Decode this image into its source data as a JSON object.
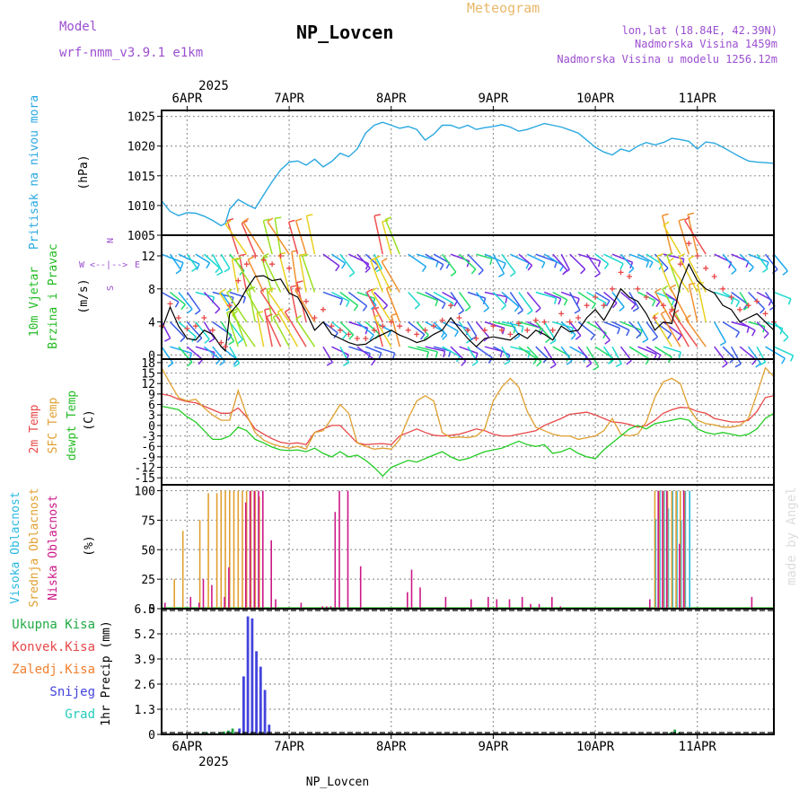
{
  "header": {
    "model_label": "Model",
    "model_name": "wrf-nmm_v3.9.1 e1km",
    "station": "NP_Lovcen",
    "product": "Meteogram",
    "lonlat": "lon,lat (18.84E, 42.39N)",
    "altitude": "Nadmorska Visina 1459m",
    "model_altitude": "Nadmorska Visina u modelu 1256.12m",
    "footer_station": "NP_Lovcen",
    "credit": "made by Angel"
  },
  "time_axis": {
    "year": "2025",
    "days": [
      "6APR",
      "7APR",
      "8APR",
      "9APR",
      "10APR",
      "11APR"
    ],
    "hours_shown": [
      -6,
      138
    ]
  },
  "colors": {
    "pressure": "#29a8e0",
    "temp2m": "#e84848",
    "sfc": "#e0a030",
    "dewpt": "#22cc22",
    "high_cloud": "#29b8e0",
    "mid_cloud": "#e0a030",
    "low_cloud": "#cc1888",
    "total_rain": "#22aa44",
    "conv_rain": "#e84848",
    "frozen": "#f08030",
    "snow": "#4444dd",
    "graupel": "#22ccbb",
    "gust": "#e84848"
  },
  "panels": {
    "pressure": {
      "ylabel_title": "Pritisak na nivou mora",
      "unit": "(hPa)",
      "ticks": [
        "1005",
        "1010",
        "1015",
        "1020",
        "1025"
      ]
    },
    "wind": {
      "ylabel_title": "10m Vjetar",
      "ylabel_title2": "Brzina i Pravac",
      "unit": "(m/s)",
      "ticks": [
        "0",
        "4",
        "8",
        "12"
      ],
      "compass_n": "N",
      "compass_s": "S",
      "compass_w": "W",
      "compass_e": "E"
    },
    "temp": {
      "label_2m": "2m Temp",
      "label_sfc": "SFC Temp",
      "label_dewpt": "dewpt Temp",
      "unit": "(C)",
      "ticks": [
        "-15",
        "-12",
        "-9",
        "-6",
        "-3",
        "0",
        "3",
        "6",
        "9",
        "12",
        "15",
        "18"
      ]
    },
    "cloud": {
      "label_high": "Visoka Oblacnost",
      "label_mid": "Srednja Oblacnost",
      "label_low": "Niska Oblacnost",
      "unit": "(%)",
      "ticks": [
        "0",
        "25",
        "50",
        "75",
        "100"
      ]
    },
    "precip": {
      "legend": [
        "Ukupna Kisa",
        "Konvek.Kisa",
        "Zaledj.Kisa",
        "Snijeg",
        "Grad"
      ],
      "ylabel": "1hr Precip (mm)",
      "ticks": [
        "0",
        "1.3",
        "2.6",
        "3.9",
        "5.2",
        "6.5"
      ]
    }
  },
  "chart_data": [
    {
      "type": "line",
      "title": "",
      "ylabel": "Pritisak na nivou mora (hPa)",
      "ylim": [
        1005,
        1026
      ],
      "x_unit": "hours from 6APR 00UTC",
      "series": [
        {
          "name": "Pritisak na nivou mora",
          "x": [
            -6,
            -4,
            -2,
            0,
            2,
            4,
            6,
            8,
            9,
            10,
            12,
            14,
            16,
            18,
            20,
            22,
            24,
            26,
            28,
            30,
            32,
            34,
            36,
            38,
            40,
            42,
            44,
            46,
            48,
            50,
            52,
            54,
            56,
            58,
            60,
            62,
            64,
            66,
            68,
            70,
            72,
            74,
            76,
            78,
            80,
            82,
            84,
            86,
            88,
            90,
            92,
            94,
            96,
            98,
            100,
            102,
            104,
            106,
            108,
            110,
            112,
            114,
            116,
            118,
            120,
            122,
            124,
            126,
            128,
            130,
            132,
            134,
            136,
            138
          ],
          "y": [
            1010.8,
            1009,
            1008.3,
            1008.8,
            1008.7,
            1008.2,
            1007.5,
            1006.6,
            1007,
            1009.4,
            1011,
            1010.2,
            1009.5,
            1011.8,
            1014,
            1016,
            1017.3,
            1017.5,
            1016.8,
            1017.8,
            1016.5,
            1017.4,
            1018.8,
            1018.2,
            1019.5,
            1022.2,
            1023.5,
            1024,
            1023.5,
            1023,
            1023.3,
            1022.8,
            1021,
            1022,
            1023.5,
            1023.5,
            1023,
            1023.5,
            1022.8,
            1023.1,
            1023.3,
            1023.6,
            1023.2,
            1022.5,
            1022.8,
            1023.3,
            1023.8,
            1023.5,
            1023.2,
            1022.7,
            1022.2,
            1021,
            1019.8,
            1019,
            1018.5,
            1019.5,
            1019.1,
            1020,
            1020.6,
            1020.2,
            1020.6,
            1021.3,
            1021.1,
            1020.8,
            1019.5,
            1020.7,
            1020.5,
            1019.8,
            1019,
            1018.2,
            1017.5,
            1017.3,
            1017.2,
            1017.1
          ]
        }
      ]
    },
    {
      "type": "line",
      "title": "",
      "ylabel": "10m Vjetar Brzina i Pravac (m/s)",
      "ylim": [
        -0.5,
        14.5
      ],
      "series": [
        {
          "name": "",
          "x": [
            -6,
            -4,
            -2,
            0,
            2,
            4,
            6,
            8,
            9,
            10,
            12,
            14,
            16,
            18,
            20,
            22,
            24,
            26,
            28,
            30,
            32,
            34,
            36,
            38,
            40,
            42,
            44,
            46,
            48,
            50,
            52,
            54,
            56,
            58,
            60,
            62,
            64,
            66,
            68,
            70,
            72,
            74,
            76,
            78,
            80,
            82,
            84,
            86,
            88,
            90,
            92,
            94,
            96,
            98,
            100,
            102,
            104,
            106,
            108,
            110,
            112,
            114,
            116,
            118,
            120,
            122,
            124,
            126,
            128,
            130,
            132,
            134,
            136,
            138
          ],
          "y": [
            3,
            5.8,
            3.5,
            2,
            1.8,
            3,
            2.5,
            1,
            0.5,
            5,
            6.2,
            8,
            9.5,
            9.6,
            9,
            9.2,
            7.5,
            7,
            5.2,
            3,
            4,
            2.5,
            2,
            1.5,
            1.2,
            1.3,
            2,
            2.5,
            3,
            2.4,
            2,
            1.5,
            1.8,
            2.5,
            3,
            4.5,
            3.2,
            2,
            1,
            2,
            2.2,
            2,
            1.8,
            2.6,
            2,
            3,
            2.5,
            1.8,
            3.5,
            2.8,
            3,
            4.5,
            5.5,
            4.2,
            6,
            8,
            7,
            6.5,
            5,
            3,
            4,
            3.8,
            8.5,
            11,
            9,
            8,
            7.5,
            6,
            5.5,
            4,
            4.5,
            5,
            4,
            3
          ]
        },
        {
          "name": "",
          "x": [
            -6,
            -4,
            -2,
            0,
            2,
            4,
            6,
            8,
            9,
            10,
            12,
            14,
            16,
            18,
            20,
            22,
            24,
            26,
            28,
            30,
            32,
            34,
            36,
            38,
            40,
            42,
            44,
            46,
            48,
            50,
            52,
            54,
            56,
            58,
            60,
            62,
            64,
            66,
            68,
            70,
            72,
            74,
            76,
            78,
            80,
            82,
            84,
            86,
            88,
            90,
            92,
            94,
            96,
            98,
            100,
            102,
            104,
            106,
            108,
            110,
            112,
            114,
            116,
            118,
            120,
            122,
            124,
            126,
            128,
            130,
            132,
            134,
            136,
            138
          ],
          "y": [
            3.5,
            6.2,
            4.5,
            3.2,
            3.5,
            4.5,
            3,
            1.5,
            1,
            6,
            9,
            11,
            12,
            11.5,
            11,
            12,
            10.5,
            8,
            6.5,
            4.5,
            5.5,
            3.5,
            3,
            2.5,
            2,
            2,
            3,
            3.5,
            4,
            3.5,
            3,
            2.5,
            3,
            3.5,
            4.2,
            6,
            4.5,
            3,
            2,
            3,
            3.5,
            3,
            2.5,
            3.8,
            3,
            4.2,
            4,
            3,
            5,
            4,
            4.5,
            6,
            7,
            6,
            8,
            10,
            9.5,
            8,
            7,
            4.5,
            6,
            5.5,
            11,
            13.5,
            12,
            10.5,
            9.5,
            8,
            7,
            5.5,
            6,
            6.5,
            5,
            4
          ]
        }
      ]
    },
    {
      "type": "line",
      "title": "",
      "ylabel": "Temp (C)",
      "ylim": [
        -17,
        19
      ],
      "x": [
        -6,
        -4,
        -2,
        0,
        2,
        4,
        6,
        8,
        10,
        12,
        14,
        16,
        18,
        20,
        22,
        24,
        26,
        28,
        30,
        32,
        34,
        36,
        38,
        40,
        42,
        44,
        46,
        48,
        50,
        52,
        54,
        56,
        58,
        60,
        62,
        64,
        66,
        68,
        70,
        72,
        74,
        76,
        78,
        80,
        82,
        84,
        86,
        88,
        90,
        92,
        94,
        96,
        98,
        100,
        102,
        104,
        106,
        108,
        110,
        112,
        114,
        116,
        118,
        120,
        122,
        124,
        126,
        128,
        130,
        132,
        134,
        136,
        138
      ],
      "series": [
        {
          "name": "2m Temp",
          "y": [
            9,
            8.5,
            7.5,
            6.8,
            6.5,
            5.5,
            4.5,
            3.5,
            3.5,
            5,
            2.5,
            -1,
            -2.5,
            -3.8,
            -4.8,
            -5.2,
            -5,
            -5.5,
            -2,
            -1,
            0,
            0,
            -2.5,
            -5,
            -5.5,
            -5.3,
            -5.2,
            -5.5,
            -3,
            -2,
            -1,
            -2,
            -2.8,
            -3,
            -2.8,
            -2.5,
            -1.8,
            -1,
            -1.5,
            -2.5,
            -3,
            -3,
            -2.5,
            -2,
            -1.5,
            0,
            1,
            2,
            3.2,
            3.5,
            3.8,
            3,
            2,
            1,
            0.8,
            0.3,
            -0.5,
            0,
            1.5,
            3.5,
            4.5,
            5.2,
            5,
            4,
            3.5,
            2,
            1.5,
            1,
            1,
            1.5,
            4,
            8,
            8.5
          ]
        },
        {
          "name": "SFC Temp",
          "y": [
            16.5,
            12,
            8,
            7,
            7.5,
            5,
            3,
            1.5,
            1.5,
            10,
            3,
            -2,
            -4.2,
            -5.3,
            -6,
            -6.5,
            -6,
            -6.8,
            -2,
            -1.5,
            2,
            6,
            3.5,
            -5,
            -6,
            -6.8,
            -6.5,
            -6.8,
            -4,
            2,
            7,
            8.5,
            7,
            -2,
            -3.5,
            -3.3,
            -3.5,
            -3,
            -1,
            7,
            11,
            13.5,
            11,
            4,
            -0.5,
            -1.5,
            -2.5,
            -3,
            -3,
            -4,
            -3.5,
            -3,
            -1.5,
            2,
            -2.5,
            -3,
            -2.5,
            1,
            8,
            12.5,
            13.5,
            12,
            5,
            1.5,
            0.5,
            0.2,
            -0.5,
            -0.5,
            0,
            2,
            9,
            16.5,
            14
          ]
        },
        {
          "name": "dewpt Temp",
          "y": [
            5.5,
            5,
            4.5,
            2.5,
            1,
            -1.5,
            -4,
            -4,
            -3,
            -0.5,
            -1.5,
            -4,
            -5,
            -6.2,
            -7,
            -7.2,
            -7,
            -7.5,
            -6.5,
            -8,
            -9,
            -7.5,
            -9,
            -8.5,
            -10,
            -12,
            -14.5,
            -12,
            -11,
            -10,
            -10.5,
            -9.5,
            -8.5,
            -7.5,
            -9,
            -10,
            -9.5,
            -8.5,
            -7.5,
            -7,
            -6.5,
            -5.5,
            -4.5,
            -5.5,
            -6,
            -5.5,
            -8,
            -7.5,
            -6.5,
            -8,
            -9,
            -9.5,
            -7,
            -5,
            -3,
            -1,
            0,
            -1,
            0.5,
            1,
            1.5,
            2,
            1.5,
            -1,
            -2,
            -2.5,
            -2,
            -2.5,
            -3,
            -2.5,
            -1,
            2,
            3.5
          ]
        }
      ]
    },
    {
      "type": "bar",
      "title": "",
      "ylabel": "Oblacnost (%)",
      "ylim": [
        0,
        100
      ],
      "series": [
        {
          "name": "Visoka Oblacnost",
          "x": [
            110,
            111,
            112,
            113,
            114,
            115,
            116,
            117,
            118
          ],
          "y": [
            76,
            100,
            100,
            85,
            100,
            100,
            75,
            100,
            100
          ]
        },
        {
          "name": "Srednja Oblacnost",
          "x": [
            -3,
            -1,
            3,
            5,
            7,
            8,
            9,
            10,
            11,
            12,
            13,
            14,
            15,
            16,
            17,
            110,
            111,
            112,
            113,
            114,
            115,
            116,
            117
          ],
          "y": [
            25,
            66,
            75,
            98,
            98,
            100,
            100,
            100,
            100,
            100,
            100,
            100,
            100,
            100,
            95,
            100,
            100,
            100,
            100,
            100,
            100,
            100,
            100
          ]
        },
        {
          "name": "Niska Oblacnost",
          "x": [
            -5,
            1,
            3,
            4,
            6,
            9,
            10,
            14,
            15,
            16,
            17,
            18,
            20,
            21,
            27,
            32,
            33,
            34,
            35,
            36,
            38,
            41,
            52,
            53,
            55,
            61,
            67,
            71,
            73,
            76,
            79,
            81,
            83,
            86,
            88,
            109,
            111,
            112,
            113,
            116,
            117,
            133
          ],
          "y": [
            5,
            10,
            5,
            25,
            20,
            10,
            35,
            90,
            100,
            100,
            100,
            100,
            58,
            8,
            5,
            2,
            2,
            2,
            82,
            100,
            100,
            36,
            14,
            33,
            18,
            10,
            8,
            10,
            8,
            8,
            10,
            4,
            4,
            10,
            2,
            8,
            100,
            100,
            100,
            55,
            100,
            10
          ]
        }
      ]
    },
    {
      "type": "bar",
      "title": "",
      "ylabel": "1hr Precip (mm)",
      "ylim": [
        0,
        6.5
      ],
      "series": [
        {
          "name": "Ukupna Kisa",
          "x": [
            3,
            4,
            5,
            6,
            7,
            8,
            9,
            10,
            11,
            13,
            14,
            30,
            31,
            32,
            114,
            115,
            116
          ],
          "y": [
            0.05,
            0.1,
            0.1,
            0.05,
            0.05,
            0.1,
            0.15,
            0.2,
            0.3,
            0.05,
            0.05,
            0.05,
            0.05,
            0.05,
            0.1,
            0.25,
            0.1
          ]
        },
        {
          "name": "Snijeg",
          "x": [
            12,
            13,
            14,
            15,
            16,
            17,
            18,
            19
          ],
          "y": [
            0.3,
            3,
            6.1,
            6.0,
            4.3,
            3.5,
            2.3,
            0.5
          ]
        }
      ]
    }
  ]
}
